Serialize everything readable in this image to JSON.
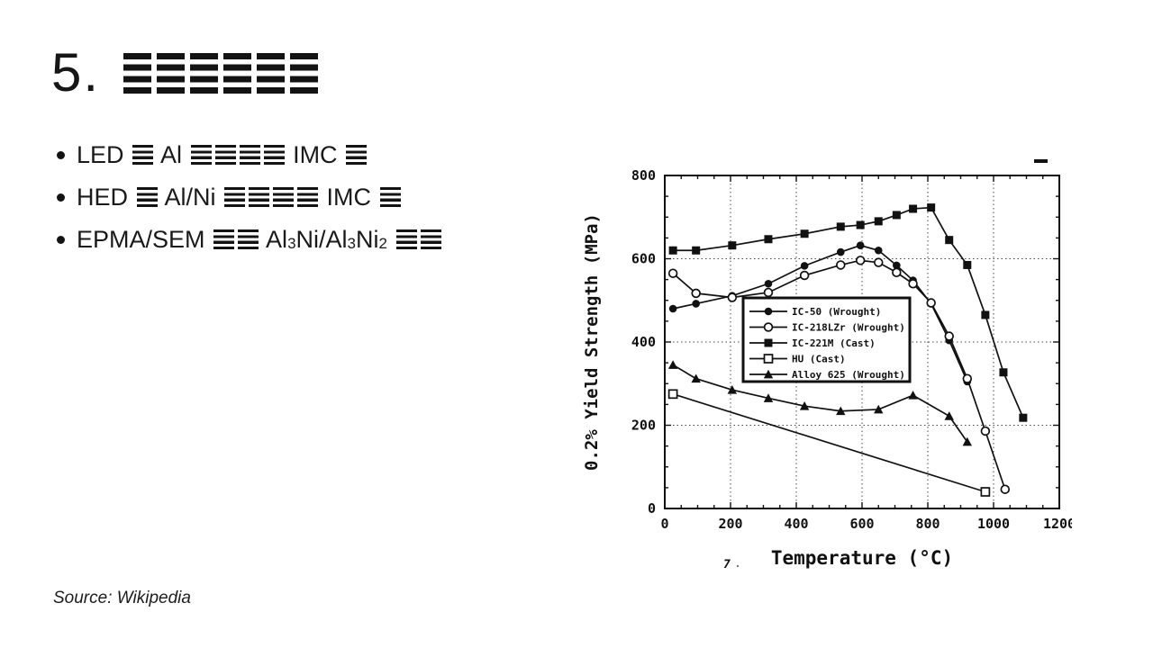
{
  "slide": {
    "title": {
      "number": "5.",
      "redacted_glyph_count": 6
    },
    "bullets": [
      {
        "segments": [
          {
            "t": "text",
            "v": "LED "
          },
          {
            "t": "bars",
            "n": 1
          },
          {
            "t": "text",
            "v": " Al "
          },
          {
            "t": "bars",
            "n": 4
          },
          {
            "t": "text",
            "v": " IMC "
          },
          {
            "t": "bars",
            "n": 1
          }
        ]
      },
      {
        "segments": [
          {
            "t": "text",
            "v": "HED "
          },
          {
            "t": "bars",
            "n": 1
          },
          {
            "t": "text",
            "v": " Al/Ni "
          },
          {
            "t": "bars",
            "n": 4
          },
          {
            "t": "text",
            "v": " IMC "
          },
          {
            "t": "bars",
            "n": 1
          }
        ]
      },
      {
        "segments": [
          {
            "t": "text",
            "v": "EPMA/SEM "
          },
          {
            "t": "bars",
            "n": 2
          },
          {
            "t": "text",
            "v": " Al"
          },
          {
            "t": "sub",
            "v": "3"
          },
          {
            "t": "text",
            "v": "Ni/Al"
          },
          {
            "t": "sub",
            "v": "3"
          },
          {
            "t": "text",
            "v": "Ni"
          },
          {
            "t": "sub",
            "v": "2"
          },
          {
            "t": "text",
            "v": " "
          },
          {
            "t": "bars",
            "n": 2
          }
        ]
      }
    ],
    "source": "Source: Wikipedia"
  },
  "chart_data": {
    "type": "line",
    "title": "",
    "xlabel": "Temperature (°C)",
    "ylabel": "0.2% Yield Strength (MPa)",
    "xlim": [
      0,
      1200
    ],
    "ylim": [
      0,
      800
    ],
    "xticks": [
      0,
      200,
      400,
      600,
      800,
      1000,
      1200
    ],
    "yticks": [
      0,
      200,
      400,
      600,
      800
    ],
    "grid": "dotted",
    "legend_position": "inside center-left",
    "series": [
      {
        "name": "IC-50 (Wrought)",
        "marker": "circle-filled",
        "points": [
          [
            25,
            480
          ],
          [
            95,
            492
          ],
          [
            205,
            511
          ],
          [
            315,
            540
          ],
          [
            425,
            583
          ],
          [
            535,
            616
          ],
          [
            595,
            632
          ],
          [
            650,
            620
          ],
          [
            705,
            584
          ],
          [
            755,
            548
          ],
          [
            810,
            492
          ],
          [
            865,
            404
          ],
          [
            920,
            305
          ]
        ]
      },
      {
        "name": "IC-218LZr (Wrought)",
        "marker": "circle-open",
        "points": [
          [
            25,
            565
          ],
          [
            95,
            517
          ],
          [
            205,
            507
          ],
          [
            315,
            519
          ],
          [
            425,
            560
          ],
          [
            535,
            585
          ],
          [
            595,
            596
          ],
          [
            650,
            591
          ],
          [
            705,
            567
          ],
          [
            755,
            540
          ],
          [
            810,
            494
          ],
          [
            865,
            414
          ],
          [
            920,
            312
          ],
          [
            975,
            186
          ],
          [
            1035,
            46
          ]
        ]
      },
      {
        "name": "IC-221M (Cast)",
        "marker": "square-filled",
        "points": [
          [
            25,
            620
          ],
          [
            95,
            620
          ],
          [
            205,
            632
          ],
          [
            315,
            647
          ],
          [
            425,
            660
          ],
          [
            535,
            677
          ],
          [
            595,
            681
          ],
          [
            650,
            690
          ],
          [
            705,
            705
          ],
          [
            755,
            720
          ],
          [
            810,
            723
          ],
          [
            865,
            645
          ],
          [
            920,
            585
          ],
          [
            975,
            465
          ],
          [
            1030,
            327
          ],
          [
            1090,
            218
          ]
        ]
      },
      {
        "name": "HU (Cast)",
        "marker": "square-open",
        "points": [
          [
            25,
            275
          ],
          [
            975,
            40
          ]
        ]
      },
      {
        "name": "Alloy 625 (Wrought)",
        "marker": "triangle-filled",
        "points": [
          [
            25,
            345
          ],
          [
            95,
            312
          ],
          [
            205,
            285
          ],
          [
            315,
            265
          ],
          [
            425,
            246
          ],
          [
            535,
            234
          ],
          [
            650,
            238
          ],
          [
            755,
            272
          ],
          [
            865,
            222
          ],
          [
            920,
            160
          ]
        ]
      }
    ]
  }
}
